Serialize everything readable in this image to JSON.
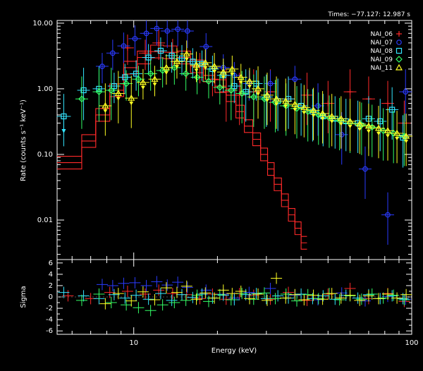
{
  "chart_data": {
    "type": "scatter",
    "header": "Times: −77.127: 12.987 s",
    "xlabel": "Energy (keV)",
    "ylabel_top": "Rate (counts s⁻¹ keV⁻¹)",
    "ylabel_bottom": "Sigma",
    "x_scale": "log",
    "xlim": [
      5.3,
      100
    ],
    "ylim_top": [
      0.0025,
      11
    ],
    "y_scale_top": "log",
    "ylim_bottom": [
      -6.6,
      6.6
    ],
    "x_tick_labels": [
      {
        "value": 10,
        "label": "10"
      },
      {
        "value": 100,
        "label": "100"
      }
    ],
    "y_tick_labels_top": [
      {
        "value": 10,
        "label": "10.00"
      },
      {
        "value": 1,
        "label": "1.00"
      },
      {
        "value": 0.1,
        "label": "0.10"
      },
      {
        "value": 0.01,
        "label": "0.01"
      }
    ],
    "y_tick_labels_bottom": [
      {
        "value": 6,
        "label": "6"
      },
      {
        "value": 4,
        "label": "4"
      },
      {
        "value": 2,
        "label": "2"
      },
      {
        "value": 0,
        "label": "0"
      },
      {
        "value": -2,
        "label": "-2"
      },
      {
        "value": -4,
        "label": "-4"
      },
      {
        "value": -6,
        "label": "-6"
      }
    ],
    "legend_position": "top-right",
    "series": [
      {
        "name": "NAI_06",
        "marker": "+",
        "color": "#ff2a2a",
        "model_step": [
          [
            5.3,
            0.075
          ],
          [
            6.5,
            0.16
          ],
          [
            7.3,
            0.4
          ],
          [
            8.2,
            0.95
          ],
          [
            9.2,
            2.1
          ],
          [
            10.3,
            3.0
          ],
          [
            11.5,
            3.7
          ],
          [
            12.8,
            3.6
          ],
          [
            14.3,
            3.0
          ],
          [
            16,
            2.2
          ],
          [
            17.8,
            1.6
          ],
          [
            19.6,
            1.1
          ],
          [
            21.5,
            0.8
          ],
          [
            23.3,
            0.45
          ],
          [
            25,
            0.27
          ],
          [
            26.8,
            0.17
          ],
          [
            28.6,
            0.1
          ],
          [
            30.3,
            0.06
          ],
          [
            32,
            0.035
          ],
          [
            34,
            0.02
          ],
          [
            36,
            0.012
          ],
          [
            38,
            0.0075
          ],
          [
            40,
            0.0045
          ],
          [
            42,
            0.0028
          ]
        ],
        "points": [
          [
            9.5,
            4.2
          ],
          [
            11,
            3.5
          ],
          [
            12.3,
            5.0
          ],
          [
            13.8,
            3.6
          ],
          [
            15.5,
            2.6
          ],
          [
            17.3,
            2.2
          ],
          [
            19.2,
            1.4
          ],
          [
            21.5,
            0.9
          ],
          [
            24,
            0.8
          ],
          [
            27,
            0.9
          ],
          [
            31,
            0.9
          ],
          [
            36,
            0.7
          ],
          [
            42,
            0.8
          ],
          [
            50,
            0.6
          ],
          [
            60,
            0.9
          ],
          [
            70,
            0.7
          ],
          [
            82,
            0.6
          ],
          [
            94,
            0.3
          ]
        ],
        "residuals": [
          [
            5.8,
            0.2
          ],
          [
            7,
            -0.3
          ],
          [
            8.2,
            0.8
          ],
          [
            9.5,
            1.0
          ],
          [
            11,
            0.5
          ],
          [
            12.3,
            1.2
          ],
          [
            13.8,
            0.6
          ],
          [
            15.5,
            0.4
          ],
          [
            17.3,
            -0.3
          ],
          [
            19.2,
            0.5
          ],
          [
            21.5,
            -0.4
          ],
          [
            24,
            0.6
          ],
          [
            27,
            0.3
          ],
          [
            31,
            -0.4
          ],
          [
            36,
            0.8
          ],
          [
            42,
            -0.6
          ],
          [
            50,
            0.5
          ],
          [
            60,
            1.5
          ],
          [
            70,
            -0.3
          ],
          [
            82,
            0.6
          ],
          [
            94,
            -0.8
          ]
        ]
      },
      {
        "name": "NAI_07",
        "marker": "o",
        "color": "#2a3bff",
        "points": [
          [
            7.7,
            2.2
          ],
          [
            8.4,
            3.5
          ],
          [
            9.2,
            4.5
          ],
          [
            10.1,
            5.8
          ],
          [
            11.1,
            7.0
          ],
          [
            12.1,
            8.3
          ],
          [
            13.2,
            7.6
          ],
          [
            14.4,
            8.1
          ],
          [
            15.6,
            7.6
          ],
          [
            18.2,
            4.4
          ],
          [
            21,
            2.1
          ],
          [
            23,
            1.6
          ],
          [
            26,
            1.2
          ],
          [
            31,
            1.2
          ],
          [
            38,
            1.4
          ],
          [
            46,
            0.55
          ],
          [
            56,
            0.2
          ],
          [
            68,
            0.06
          ],
          [
            82,
            0.012
          ],
          [
            95,
            0.9
          ]
        ],
        "residuals": [
          [
            7.7,
            2.2
          ],
          [
            8.4,
            2.0
          ],
          [
            9.2,
            2.4
          ],
          [
            10.1,
            2.5
          ],
          [
            11.1,
            2.0
          ],
          [
            12.1,
            2.7
          ],
          [
            13.2,
            2.1
          ],
          [
            14.4,
            2.6
          ],
          [
            15.6,
            1.7
          ],
          [
            18.2,
            1.2
          ],
          [
            21,
            0.5
          ],
          [
            23,
            -0.2
          ],
          [
            26,
            0.8
          ],
          [
            31,
            1.5
          ],
          [
            38,
            0.3
          ],
          [
            46,
            -0.5
          ],
          [
            56,
            0.7
          ],
          [
            68,
            -0.7
          ],
          [
            82,
            0.1
          ],
          [
            95,
            -0.4
          ]
        ]
      },
      {
        "name": "NAI_08",
        "marker": "square",
        "color": "#33e5ff",
        "points": [
          [
            5.6,
            0.38
          ],
          [
            6.6,
            0.95
          ],
          [
            7.5,
            1.0
          ],
          [
            8.5,
            1.1
          ],
          [
            9.3,
            1.5
          ],
          [
            10.2,
            1.7
          ],
          [
            11.3,
            3.0
          ],
          [
            12.5,
            3.8
          ],
          [
            13.7,
            3.2
          ],
          [
            14.9,
            2.9
          ],
          [
            16.3,
            2.6
          ],
          [
            17.6,
            2.4
          ],
          [
            19.2,
            2.0
          ],
          [
            21,
            1.6
          ],
          [
            23,
            1.1
          ],
          [
            25.3,
            0.9
          ],
          [
            27.6,
            1.2
          ],
          [
            30,
            0.75
          ],
          [
            33,
            0.65
          ],
          [
            36,
            0.7
          ],
          [
            40,
            0.55
          ],
          [
            44,
            0.45
          ],
          [
            48,
            0.38
          ],
          [
            53,
            0.35
          ],
          [
            58,
            0.32
          ],
          [
            64,
            0.3
          ],
          [
            70,
            0.35
          ],
          [
            77,
            0.32
          ],
          [
            85,
            0.48
          ],
          [
            93,
            0.18
          ]
        ],
        "residuals": [
          [
            5.6,
            0.8
          ],
          [
            6.6,
            0.2
          ],
          [
            7.5,
            -0.3
          ],
          [
            8.5,
            0.4
          ],
          [
            9.3,
            -0.2
          ],
          [
            10.2,
            0.3
          ],
          [
            11.3,
            -0.4
          ],
          [
            12.5,
            0.6
          ],
          [
            13.7,
            -0.6
          ],
          [
            14.9,
            0.4
          ],
          [
            16.3,
            -0.1
          ],
          [
            17.6,
            0.5
          ],
          [
            19.2,
            -0.2
          ],
          [
            21,
            0.3
          ],
          [
            23,
            -0.5
          ],
          [
            25.3,
            0.4
          ],
          [
            27.6,
            0.6
          ],
          [
            30,
            -0.3
          ],
          [
            33,
            0.2
          ],
          [
            36,
            -0.2
          ],
          [
            40,
            0.5
          ],
          [
            44,
            -0.3
          ],
          [
            48,
            0.2
          ],
          [
            53,
            -0.4
          ],
          [
            58,
            0.3
          ],
          [
            64,
            -0.2
          ],
          [
            70,
            0.4
          ],
          [
            77,
            -0.3
          ],
          [
            85,
            0.2
          ],
          [
            93,
            -0.3
          ]
        ]
      },
      {
        "name": "NAI_09",
        "marker": "diamond",
        "color": "#33ff66",
        "points": [
          [
            6.5,
            0.7
          ],
          [
            7.5,
            0.9
          ],
          [
            8.3,
            0.95
          ],
          [
            9.4,
            1.2
          ],
          [
            10.4,
            1.4
          ],
          [
            11.5,
            1.7
          ],
          [
            12.7,
            1.9
          ],
          [
            14,
            2.1
          ],
          [
            15.4,
            1.7
          ],
          [
            16.9,
            1.5
          ],
          [
            18.6,
            1.3
          ],
          [
            20.4,
            1.05
          ],
          [
            22.4,
            0.95
          ],
          [
            24.5,
            0.85
          ],
          [
            27,
            0.75
          ],
          [
            29.5,
            0.7
          ],
          [
            32.3,
            0.62
          ],
          [
            35.3,
            0.55
          ],
          [
            38.6,
            0.5
          ],
          [
            42.3,
            0.45
          ],
          [
            46.2,
            0.4
          ],
          [
            50.5,
            0.36
          ],
          [
            55,
            0.33
          ],
          [
            60,
            0.3
          ],
          [
            66,
            0.28
          ],
          [
            72,
            0.26
          ],
          [
            79,
            0.23
          ],
          [
            86,
            0.21
          ],
          [
            94,
            0.19
          ]
        ],
        "residuals": [
          [
            6.5,
            -0.6
          ],
          [
            7.5,
            0.5
          ],
          [
            8.3,
            -1.0
          ],
          [
            9.4,
            -1.4
          ],
          [
            10.4,
            -1.9
          ],
          [
            11.5,
            -2.4
          ],
          [
            12.7,
            -1.4
          ],
          [
            14,
            -1.0
          ],
          [
            15.4,
            -0.6
          ],
          [
            16.9,
            0.3
          ],
          [
            18.6,
            -0.8
          ],
          [
            20.4,
            0.4
          ],
          [
            22.4,
            -0.5
          ],
          [
            24.5,
            0.6
          ],
          [
            27,
            -0.4
          ],
          [
            29.5,
            0.7
          ],
          [
            32.3,
            -0.3
          ],
          [
            35.3,
            0.5
          ],
          [
            38.6,
            -0.7
          ],
          [
            42.3,
            0.4
          ],
          [
            46.2,
            -0.3
          ],
          [
            50.5,
            0.6
          ],
          [
            55,
            -0.5
          ],
          [
            60,
            0.2
          ],
          [
            66,
            -0.4
          ],
          [
            72,
            0.5
          ],
          [
            79,
            -0.2
          ],
          [
            86,
            0.3
          ],
          [
            94,
            -0.5
          ]
        ]
      },
      {
        "name": "NAI_11",
        "marker": "triangle",
        "color": "#ffff22",
        "points": [
          [
            7.9,
            0.55
          ],
          [
            8.8,
            0.85
          ],
          [
            9.8,
            0.72
          ],
          [
            10.8,
            1.25
          ],
          [
            11.9,
            1.4
          ],
          [
            13.1,
            2.1
          ],
          [
            14.3,
            2.6
          ],
          [
            15.5,
            3.4
          ],
          [
            16.8,
            2.3
          ],
          [
            18.1,
            2.5
          ],
          [
            19.5,
            2.2
          ],
          [
            21,
            1.8
          ],
          [
            22.6,
            2.0
          ],
          [
            24.3,
            1.5
          ],
          [
            26.1,
            1.3
          ],
          [
            28,
            1.0
          ],
          [
            30.2,
            0.8
          ],
          [
            32.6,
            0.7
          ],
          [
            35.2,
            0.65
          ],
          [
            38,
            0.58
          ],
          [
            41,
            0.52
          ],
          [
            44.3,
            0.47
          ],
          [
            47.8,
            0.42
          ],
          [
            51.6,
            0.38
          ],
          [
            55.7,
            0.35
          ],
          [
            60,
            0.32
          ],
          [
            65,
            0.29
          ],
          [
            70,
            0.27
          ],
          [
            76,
            0.25
          ],
          [
            82,
            0.23
          ],
          [
            88.5,
            0.21
          ],
          [
            95.5,
            0.19
          ]
        ],
        "residuals": [
          [
            7.9,
            -1.2
          ],
          [
            8.8,
            0.6
          ],
          [
            9.8,
            -0.7
          ],
          [
            10.8,
            0.9
          ],
          [
            11.9,
            -0.5
          ],
          [
            13.1,
            1.6
          ],
          [
            14.3,
            0.8
          ],
          [
            15.5,
            1.9
          ],
          [
            16.8,
            -0.4
          ],
          [
            18.1,
            0.7
          ],
          [
            19.5,
            -0.2
          ],
          [
            21,
            1.2
          ],
          [
            22.6,
            0.6
          ],
          [
            24.3,
            1.0
          ],
          [
            26.1,
            -0.3
          ],
          [
            28,
            0.5
          ],
          [
            30.2,
            -0.6
          ],
          [
            32.6,
            3.3
          ],
          [
            35.2,
            -0.2
          ],
          [
            38,
            0.4
          ],
          [
            41,
            -0.5
          ],
          [
            44.3,
            0.3
          ],
          [
            47.8,
            -0.4
          ],
          [
            51.6,
            0.6
          ],
          [
            55.7,
            -0.2
          ],
          [
            60,
            0.3
          ],
          [
            65,
            -0.6
          ],
          [
            70,
            0.2
          ],
          [
            76,
            -0.3
          ],
          [
            82,
            0.5
          ],
          [
            88.5,
            -0.2
          ],
          [
            95.5,
            0.4
          ]
        ]
      }
    ],
    "upper_limits": [
      {
        "series": "NAI_08",
        "x": 5.6,
        "y": 0.38
      }
    ]
  }
}
